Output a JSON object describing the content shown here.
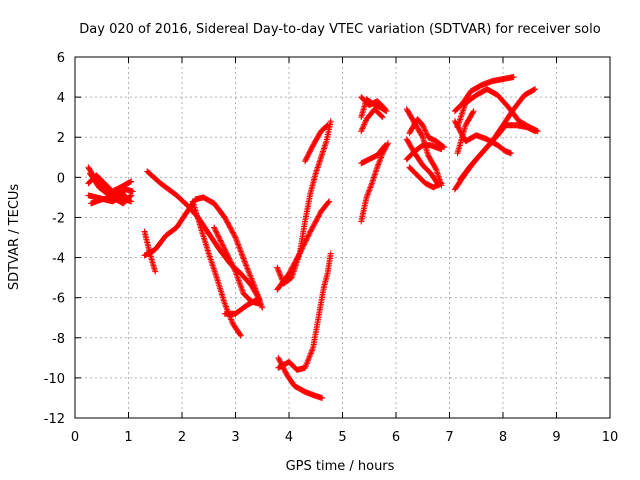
{
  "chart_data": {
    "type": "scatter",
    "title": "Day 020 of 2016, Sidereal Day-to-day VTEC variation (SDTVAR) for receiver solo",
    "xlabel": "GPS time / hours",
    "ylabel": "SDTVAR / TECUs",
    "xlim": [
      0,
      10
    ],
    "ylim": [
      -12,
      6
    ],
    "x_ticks": [
      "0",
      "1",
      "2",
      "3",
      "4",
      "5",
      "6",
      "7",
      "8",
      "9",
      "10"
    ],
    "y_ticks": [
      "-12",
      "-10",
      "-8",
      "-6",
      "-4",
      "-2",
      "0",
      "2",
      "4",
      "6"
    ],
    "grid": true,
    "marker": "+",
    "color": "#ff0000",
    "series": [
      {
        "segments": [
          [
            [
              0.25,
              0.5
            ],
            [
              0.4,
              -0.2
            ],
            [
              0.55,
              -0.6
            ],
            [
              0.7,
              -0.9
            ],
            [
              0.85,
              -0.7
            ],
            [
              1.0,
              -1.1
            ]
          ],
          [
            [
              0.25,
              -0.9
            ],
            [
              0.4,
              -1.0
            ],
            [
              0.55,
              -1.1
            ],
            [
              0.7,
              -1.2
            ],
            [
              0.85,
              -1.0
            ],
            [
              1.05,
              -1.2
            ]
          ],
          [
            [
              0.25,
              -0.3
            ],
            [
              0.4,
              0.1
            ],
            [
              0.55,
              -0.3
            ],
            [
              0.7,
              -0.7
            ],
            [
              0.85,
              -0.5
            ],
            [
              1.05,
              -0.2
            ]
          ],
          [
            [
              0.3,
              -1.3
            ],
            [
              0.5,
              -1.1
            ],
            [
              0.7,
              -1.0
            ],
            [
              0.9,
              -1.3
            ],
            [
              1.05,
              -0.9
            ]
          ],
          [
            [
              0.28,
              0.2
            ],
            [
              0.45,
              -0.5
            ],
            [
              0.6,
              -0.8
            ],
            [
              0.75,
              -1.1
            ],
            [
              0.95,
              -0.6
            ],
            [
              1.08,
              -0.7
            ]
          ]
        ]
      },
      {
        "segments": [
          [
            [
              1.35,
              0.3
            ],
            [
              1.6,
              -0.3
            ],
            [
              1.9,
              -0.9
            ],
            [
              2.1,
              -1.4
            ],
            [
              2.3,
              -2.0
            ],
            [
              2.5,
              -2.8
            ],
            [
              2.7,
              -3.6
            ],
            [
              2.9,
              -4.3
            ],
            [
              3.1,
              -4.8
            ],
            [
              3.3,
              -5.4
            ],
            [
              3.45,
              -6.1
            ]
          ],
          [
            [
              1.3,
              -2.7
            ],
            [
              1.4,
              -3.8
            ],
            [
              1.5,
              -4.7
            ]
          ],
          [
            [
              1.3,
              -3.9
            ],
            [
              1.5,
              -3.6
            ],
            [
              1.7,
              -2.9
            ],
            [
              1.9,
              -2.5
            ],
            [
              2.1,
              -1.7
            ],
            [
              2.25,
              -1.1
            ],
            [
              2.4,
              -1.0
            ],
            [
              2.6,
              -1.3
            ],
            [
              2.8,
              -2.0
            ],
            [
              3.0,
              -3.0
            ],
            [
              3.2,
              -4.4
            ],
            [
              3.35,
              -5.4
            ],
            [
              3.5,
              -6.5
            ]
          ],
          [
            [
              2.2,
              -1.2
            ],
            [
              2.35,
              -2.5
            ],
            [
              2.5,
              -3.8
            ],
            [
              2.65,
              -5.0
            ],
            [
              2.8,
              -6.3
            ],
            [
              2.95,
              -7.3
            ],
            [
              3.1,
              -7.9
            ]
          ],
          [
            [
              2.6,
              -2.5
            ],
            [
              2.8,
              -3.6
            ],
            [
              3.0,
              -4.7
            ],
            [
              3.15,
              -5.8
            ],
            [
              3.3,
              -6.2
            ],
            [
              3.45,
              -6.3
            ]
          ],
          [
            [
              2.8,
              -6.8
            ],
            [
              3.0,
              -6.8
            ],
            [
              3.2,
              -6.4
            ],
            [
              3.4,
              -6.1
            ]
          ]
        ]
      },
      {
        "segments": [
          [
            [
              3.78,
              -4.5
            ],
            [
              3.9,
              -5.3
            ],
            [
              4.05,
              -5.0
            ],
            [
              4.2,
              -3.8
            ],
            [
              4.3,
              -2.2
            ],
            [
              4.4,
              -0.8
            ],
            [
              4.5,
              0.2
            ],
            [
              4.6,
              1.0
            ],
            [
              4.7,
              1.8
            ],
            [
              4.78,
              2.8
            ]
          ],
          [
            [
              3.78,
              -5.6
            ],
            [
              4.0,
              -4.8
            ],
            [
              4.2,
              -3.8
            ],
            [
              4.4,
              -2.7
            ],
            [
              4.6,
              -1.7
            ],
            [
              4.75,
              -1.2
            ]
          ],
          [
            [
              4.3,
              0.8
            ],
            [
              4.45,
              1.6
            ],
            [
              4.6,
              2.3
            ],
            [
              4.72,
              2.6
            ]
          ],
          [
            [
              3.8,
              -9.0
            ],
            [
              3.95,
              -9.8
            ],
            [
              4.1,
              -10.4
            ],
            [
              4.3,
              -10.7
            ],
            [
              4.5,
              -10.9
            ],
            [
              4.62,
              -11.0
            ]
          ],
          [
            [
              3.8,
              -9.5
            ],
            [
              4.0,
              -9.2
            ],
            [
              4.15,
              -9.6
            ],
            [
              4.3,
              -9.5
            ],
            [
              4.45,
              -8.5
            ],
            [
              4.55,
              -7.0
            ],
            [
              4.65,
              -5.5
            ],
            [
              4.72,
              -4.8
            ],
            [
              4.78,
              -3.8
            ]
          ]
        ]
      },
      {
        "segments": [
          [
            [
              5.35,
              4.0
            ],
            [
              5.5,
              3.6
            ],
            [
              5.65,
              3.8
            ],
            [
              5.8,
              3.4
            ]
          ],
          [
            [
              5.35,
              3.0
            ],
            [
              5.45,
              3.9
            ],
            [
              5.55,
              3.7
            ],
            [
              5.7,
              3.5
            ],
            [
              5.82,
              3.3
            ]
          ],
          [
            [
              5.35,
              2.3
            ],
            [
              5.45,
              2.9
            ],
            [
              5.6,
              3.4
            ],
            [
              5.75,
              3.0
            ]
          ],
          [
            [
              5.35,
              -2.2
            ],
            [
              5.45,
              -1.0
            ],
            [
              5.55,
              -0.3
            ],
            [
              5.65,
              0.5
            ],
            [
              5.75,
              1.2
            ],
            [
              5.85,
              1.7
            ]
          ],
          [
            [
              5.35,
              0.7
            ],
            [
              5.5,
              0.9
            ],
            [
              5.65,
              1.1
            ],
            [
              5.8,
              1.6
            ]
          ]
        ]
      },
      {
        "segments": [
          [
            [
              6.2,
              3.4
            ],
            [
              6.35,
              2.7
            ],
            [
              6.5,
              2.0
            ],
            [
              6.6,
              1.1
            ],
            [
              6.75,
              0.4
            ],
            [
              6.85,
              -0.4
            ]
          ],
          [
            [
              6.2,
              1.9
            ],
            [
              6.35,
              1.2
            ],
            [
              6.5,
              0.6
            ],
            [
              6.65,
              0.2
            ],
            [
              6.8,
              -0.4
            ]
          ],
          [
            [
              6.2,
              0.9
            ],
            [
              6.35,
              1.3
            ],
            [
              6.5,
              1.6
            ],
            [
              6.65,
              1.6
            ],
            [
              6.85,
              1.4
            ]
          ],
          [
            [
              6.25,
              2.2
            ],
            [
              6.4,
              2.9
            ],
            [
              6.5,
              2.6
            ],
            [
              6.6,
              2.0
            ],
            [
              6.75,
              1.8
            ],
            [
              6.9,
              1.5
            ]
          ],
          [
            [
              6.25,
              0.5
            ],
            [
              6.4,
              0.1
            ],
            [
              6.55,
              -0.3
            ],
            [
              6.7,
              -0.5
            ],
            [
              6.85,
              -0.3
            ]
          ]
        ]
      },
      {
        "segments": [
          [
            [
              7.1,
              3.3
            ],
            [
              7.25,
              3.7
            ],
            [
              7.4,
              4.3
            ],
            [
              7.6,
              4.6
            ],
            [
              7.8,
              4.8
            ],
            [
              8.0,
              4.9
            ],
            [
              8.2,
              5.0
            ]
          ],
          [
            [
              7.15,
              2.5
            ],
            [
              7.3,
              3.7
            ],
            [
              7.5,
              4.1
            ],
            [
              7.7,
              4.4
            ],
            [
              7.9,
              4.1
            ],
            [
              8.1,
              3.5
            ],
            [
              8.3,
              2.8
            ],
            [
              8.5,
              2.5
            ],
            [
              8.65,
              2.3
            ]
          ],
          [
            [
              7.1,
              2.8
            ],
            [
              7.3,
              1.8
            ],
            [
              7.5,
              2.1
            ],
            [
              7.7,
              1.9
            ],
            [
              7.9,
              1.6
            ],
            [
              8.05,
              1.3
            ],
            [
              8.15,
              1.2
            ]
          ],
          [
            [
              7.1,
              -0.6
            ],
            [
              7.3,
              0.2
            ],
            [
              7.5,
              0.9
            ],
            [
              7.7,
              1.5
            ],
            [
              7.9,
              2.1
            ],
            [
              8.05,
              2.6
            ],
            [
              8.25,
              2.6
            ],
            [
              8.45,
              2.5
            ],
            [
              8.6,
              2.3
            ]
          ],
          [
            [
              7.2,
              -0.1
            ],
            [
              7.4,
              0.6
            ],
            [
              7.6,
              1.2
            ],
            [
              7.8,
              1.8
            ],
            [
              8.0,
              2.6
            ],
            [
              8.2,
              3.4
            ],
            [
              8.4,
              4.1
            ],
            [
              8.6,
              4.4
            ]
          ],
          [
            [
              7.15,
              1.2
            ],
            [
              7.3,
              2.6
            ],
            [
              7.45,
              3.3
            ]
          ]
        ]
      }
    ]
  }
}
